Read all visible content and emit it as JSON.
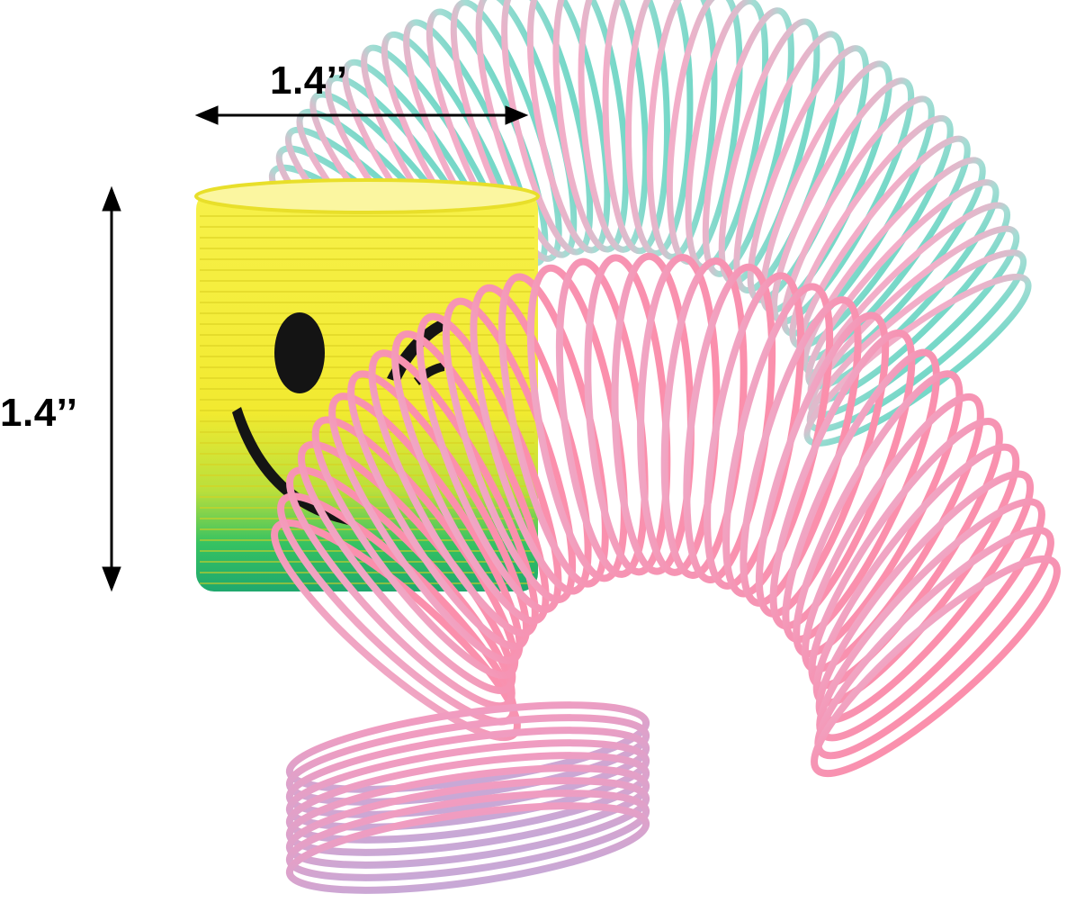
{
  "product": {
    "name": "",
    "description": ""
  },
  "dimensions": {
    "width_label": "1.4’’",
    "height_label": "1.4’’"
  },
  "colors": {
    "background": "#ffffff",
    "teal_spring": "#7fd9cc",
    "pink_spring": "#f49ab6",
    "pastel_spring": "#f6a7c2",
    "yellow_spring": "#f6ee3a",
    "green_spring": "#2fbf6a",
    "face": "#1a1a1a",
    "arrow": "#000000"
  },
  "icons": {
    "width_arrow": "double-arrow-horizontal-icon",
    "height_arrow": "double-arrow-vertical-icon",
    "smiley": "winking-smiley-icon"
  }
}
